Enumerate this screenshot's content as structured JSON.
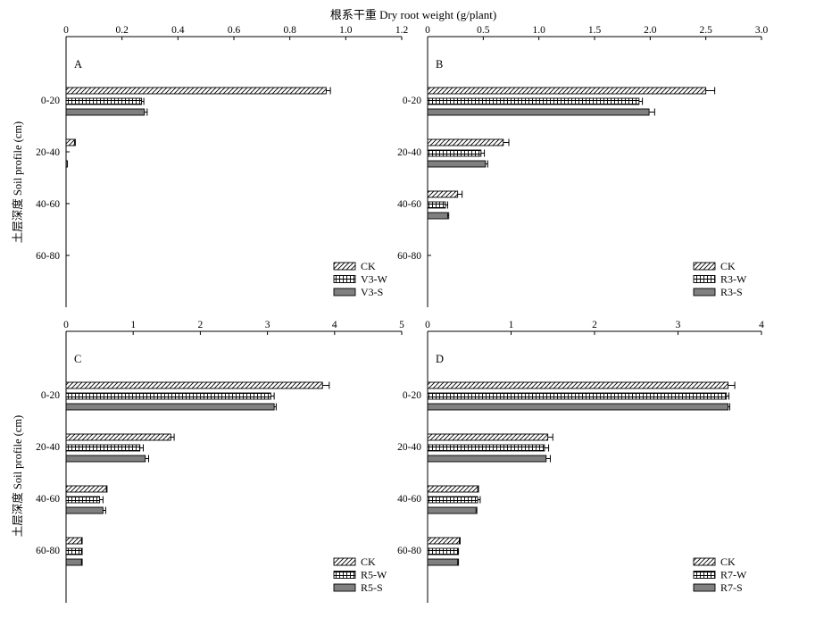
{
  "figure": {
    "top_label": "根系干重 Dry root weight (g/plant)",
    "left_label": "土层深度 Soil profile (cm)"
  },
  "colors": {
    "axis": "#000000",
    "ck_fill": "diagonal-hatch",
    "w_fill": "grid-hatch",
    "s_fill": "#808080"
  },
  "chart_data": [
    {
      "panel": "A",
      "type": "bar",
      "orientation": "horizontal",
      "categories": [
        "0-20",
        "20-40",
        "40-60",
        "60-80"
      ],
      "xlim": [
        0,
        1.2
      ],
      "xticks": [
        "0",
        "0.2",
        "0.4",
        "0.6",
        "0.8",
        "1.0",
        "1.2"
      ],
      "xtick_values": [
        0,
        0.2,
        0.4,
        0.6,
        0.8,
        1.0,
        1.2
      ],
      "series": [
        {
          "name": "CK",
          "pattern": "diag",
          "values": [
            0.93,
            0.03,
            null,
            null
          ],
          "errors": [
            0.015,
            0.003,
            null,
            null
          ]
        },
        {
          "name": "V3-W",
          "pattern": "grid",
          "values": [
            0.27,
            null,
            null,
            null
          ],
          "errors": [
            0.008,
            null,
            null,
            null
          ]
        },
        {
          "name": "V3-S",
          "pattern": "solid",
          "values": [
            0.28,
            0.005,
            null,
            null
          ],
          "errors": [
            0.01,
            0,
            null,
            null
          ]
        }
      ],
      "legend_position": "bottom-right"
    },
    {
      "panel": "B",
      "type": "bar",
      "orientation": "horizontal",
      "categories": [
        "0-20",
        "20-40",
        "40-60",
        "60-80"
      ],
      "xlim": [
        0,
        3.0
      ],
      "xticks": [
        "0",
        "0.5",
        "1.0",
        "1.5",
        "2.0",
        "2.5",
        "3.0"
      ],
      "xtick_values": [
        0,
        0.5,
        1.0,
        1.5,
        2.0,
        2.5,
        3.0
      ],
      "series": [
        {
          "name": "CK",
          "pattern": "diag",
          "values": [
            2.5,
            0.68,
            0.27,
            null
          ],
          "errors": [
            0.08,
            0.05,
            0.04,
            null
          ]
        },
        {
          "name": "R3-W",
          "pattern": "grid",
          "values": [
            1.9,
            0.48,
            0.16,
            null
          ],
          "errors": [
            0.03,
            0.03,
            0.02,
            null
          ]
        },
        {
          "name": "R3-S",
          "pattern": "solid",
          "values": [
            1.99,
            0.52,
            0.18,
            null
          ],
          "errors": [
            0.05,
            0.02,
            0.01,
            null
          ]
        }
      ],
      "legend_position": "bottom-right"
    },
    {
      "panel": "C",
      "type": "bar",
      "orientation": "horizontal",
      "categories": [
        "0-20",
        "20-40",
        "40-60",
        "60-80"
      ],
      "xlim": [
        0,
        5
      ],
      "xticks": [
        "0",
        "1",
        "2",
        "3",
        "4",
        "5"
      ],
      "xtick_values": [
        0,
        1,
        2,
        3,
        4,
        5
      ],
      "series": [
        {
          "name": "CK",
          "pattern": "diag",
          "values": [
            3.82,
            1.56,
            0.6,
            0.23
          ],
          "errors": [
            0.1,
            0.05,
            0.01,
            0.01
          ]
        },
        {
          "name": "R5-W",
          "pattern": "grid",
          "values": [
            3.05,
            1.1,
            0.5,
            0.23
          ],
          "errors": [
            0.05,
            0.05,
            0.05,
            0.01
          ]
        },
        {
          "name": "R5-S",
          "pattern": "solid",
          "values": [
            3.1,
            1.18,
            0.55,
            0.23
          ],
          "errors": [
            0.03,
            0.05,
            0.04,
            0.01
          ]
        }
      ],
      "legend_position": "bottom-right"
    },
    {
      "panel": "D",
      "type": "bar",
      "orientation": "horizontal",
      "categories": [
        "0-20",
        "20-40",
        "40-60",
        "60-80"
      ],
      "xlim": [
        0,
        4
      ],
      "xticks": [
        "0",
        "1",
        "2",
        "3",
        "4"
      ],
      "xtick_values": [
        0,
        1,
        2,
        3,
        4
      ],
      "series": [
        {
          "name": "CK",
          "pattern": "diag",
          "values": [
            3.6,
            1.44,
            0.6,
            0.38
          ],
          "errors": [
            0.08,
            0.06,
            0.01,
            0.01
          ]
        },
        {
          "name": "R7-W",
          "pattern": "grid",
          "values": [
            3.58,
            1.4,
            0.6,
            0.36
          ],
          "errors": [
            0.03,
            0.05,
            0.03,
            0.01
          ]
        },
        {
          "name": "R7-S",
          "pattern": "solid",
          "values": [
            3.6,
            1.42,
            0.58,
            0.36
          ],
          "errors": [
            0.02,
            0.05,
            0.01,
            0.01
          ]
        }
      ],
      "legend_position": "bottom-right"
    }
  ]
}
